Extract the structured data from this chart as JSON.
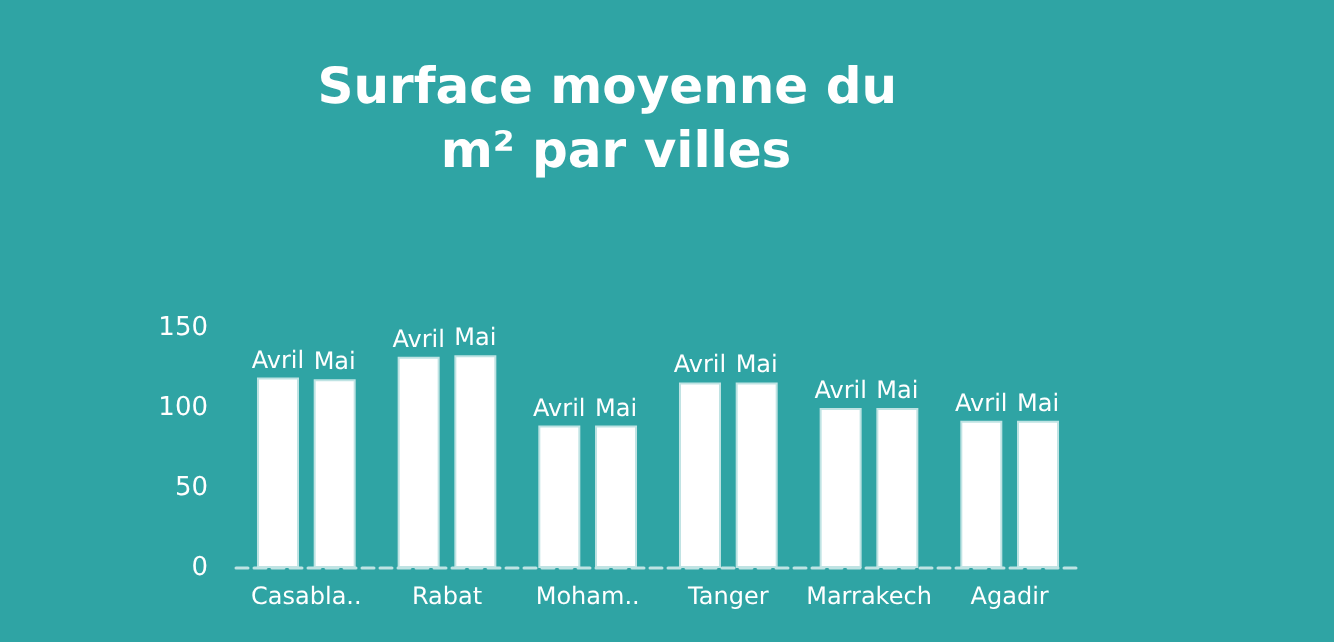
{
  "chart_data": {
    "type": "bar",
    "title": "Surface moyenne du m² par villes",
    "categories": [
      "Casabla..",
      "Rabat",
      "Moham..",
      "Tanger",
      "Marrakech",
      "Agadir"
    ],
    "series": [
      {
        "name": "Avril",
        "color": "#ffffff",
        "values": [
          119,
          132,
          89,
          116,
          100,
          92
        ]
      },
      {
        "name": "Mai",
        "color": "#ffffff",
        "values": [
          118,
          133,
          89,
          116,
          100,
          92
        ]
      }
    ],
    "ylim": [
      0,
      150
    ],
    "yticks": [
      0,
      50,
      100,
      150
    ],
    "grid": false,
    "legend": false
  }
}
